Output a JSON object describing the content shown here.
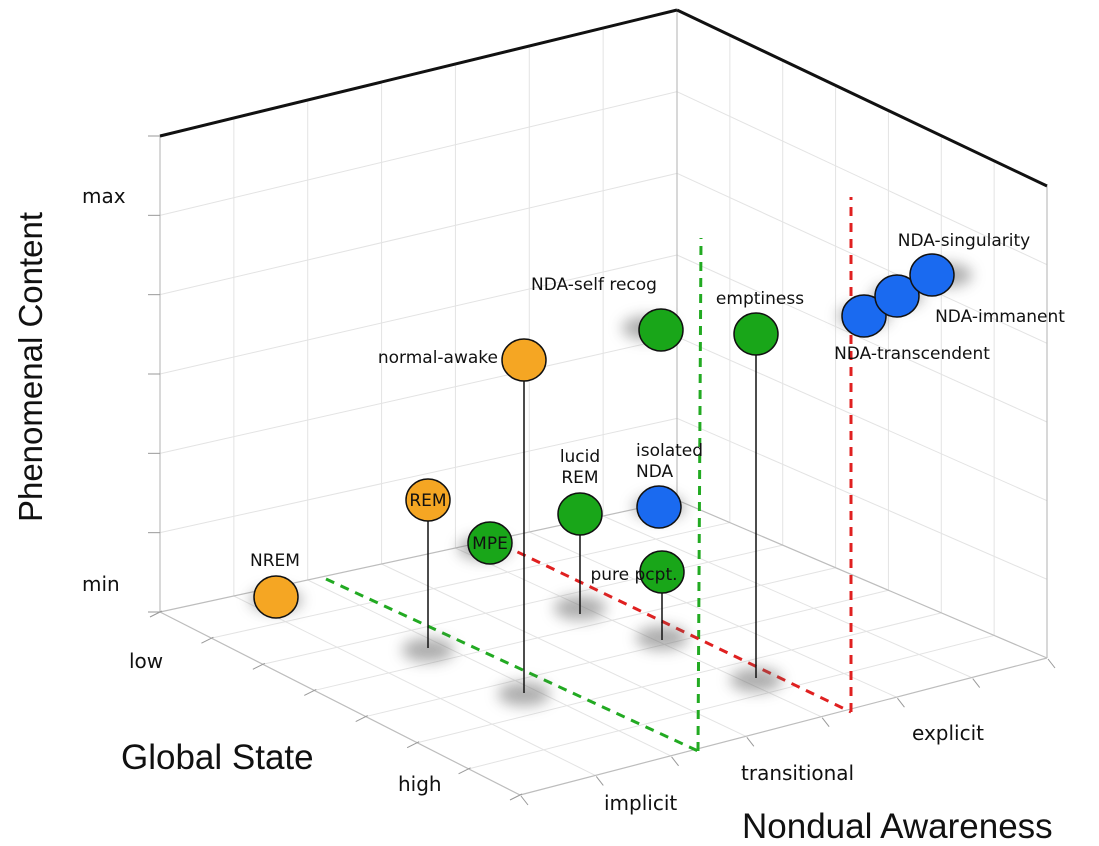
{
  "chart_data": {
    "type": "scatter",
    "subtype": "3d",
    "title": "",
    "axes": {
      "vertical": {
        "label": "Phenomenal Content",
        "ticks": [
          "min",
          "max"
        ],
        "range": [
          "min",
          "max"
        ]
      },
      "left": {
        "label": "Global State",
        "ticks": [
          "low",
          "high"
        ],
        "range": [
          "low",
          "high"
        ]
      },
      "right": {
        "label": "Nondual Awareness",
        "ticks": [
          "implicit",
          "transitional",
          "explicit"
        ]
      }
    },
    "grid": true,
    "colors": {
      "orange": "#f5a623",
      "green": "#19a619",
      "blue": "#1a6af0",
      "green_dash": "#22aa22",
      "red_dash": "#e02020"
    },
    "points": [
      {
        "name": "NREM",
        "global_state": "low",
        "nondual_awareness": "implicit",
        "phenomenal_content": "min",
        "color": "orange"
      },
      {
        "name": "REM",
        "global_state": "low",
        "nondual_awareness": "implicit",
        "phenomenal_content": "low",
        "color": "orange",
        "label_inside": true
      },
      {
        "name": "normal-awake",
        "global_state": "high",
        "nondual_awareness": "implicit",
        "phenomenal_content": "high",
        "color": "orange"
      },
      {
        "name": "MPE",
        "global_state": "low",
        "nondual_awareness": "transitional",
        "phenomenal_content": "min",
        "color": "green",
        "label_inside": true
      },
      {
        "name": "lucid\nREM",
        "global_state": "low",
        "nondual_awareness": "transitional",
        "phenomenal_content": "low",
        "color": "green"
      },
      {
        "name": "pure pcpt.",
        "global_state": "high",
        "nondual_awareness": "transitional",
        "phenomenal_content": "min",
        "color": "green"
      },
      {
        "name": "isolated\nNDA",
        "global_state": "low",
        "nondual_awareness": "explicit",
        "phenomenal_content": "low",
        "color": "blue"
      },
      {
        "name": "NDA-self recog",
        "global_state": "low",
        "nondual_awareness": "explicit",
        "phenomenal_content": "high",
        "color": "green"
      },
      {
        "name": "emptiness",
        "global_state": "high",
        "nondual_awareness": "transitional",
        "phenomenal_content": "high",
        "color": "green"
      },
      {
        "name": "NDA-transcendent",
        "global_state": "high",
        "nondual_awareness": "explicit",
        "phenomenal_content": "high",
        "color": "blue"
      },
      {
        "name": "NDA-immanent",
        "global_state": "high",
        "nondual_awareness": "explicit",
        "phenomenal_content": "high",
        "color": "blue"
      },
      {
        "name": "NDA-singularity",
        "global_state": "high",
        "nondual_awareness": "explicit",
        "phenomenal_content": "max",
        "color": "blue"
      }
    ]
  }
}
